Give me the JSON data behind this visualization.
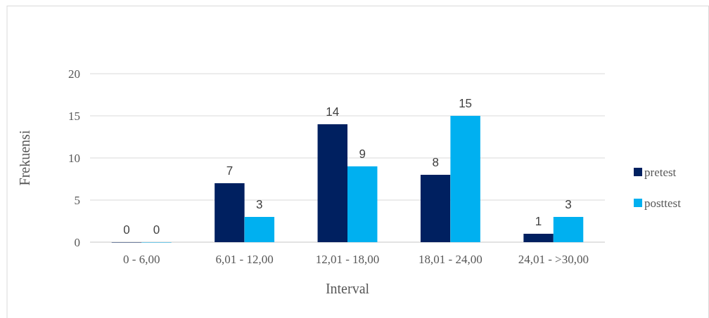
{
  "chart_data": {
    "type": "bar",
    "xlabel": "Interval",
    "ylabel": "Frekuensi",
    "categories": [
      "0 - 6,00",
      "6,01 - 12,00",
      "12,01 - 18,00",
      "18,01 - 24,00",
      "24,01 - >30,00"
    ],
    "series": [
      {
        "name": "pretest",
        "color": "#002060",
        "values": [
          0,
          7,
          14,
          8,
          1
        ]
      },
      {
        "name": "posttest",
        "color": "#00b0f0",
        "values": [
          0,
          3,
          9,
          15,
          3
        ]
      }
    ],
    "ylim": [
      0,
      20
    ],
    "yticks": [
      0,
      5,
      10,
      15,
      20
    ],
    "grid": "y",
    "legend": "right",
    "data_labels": true
  }
}
